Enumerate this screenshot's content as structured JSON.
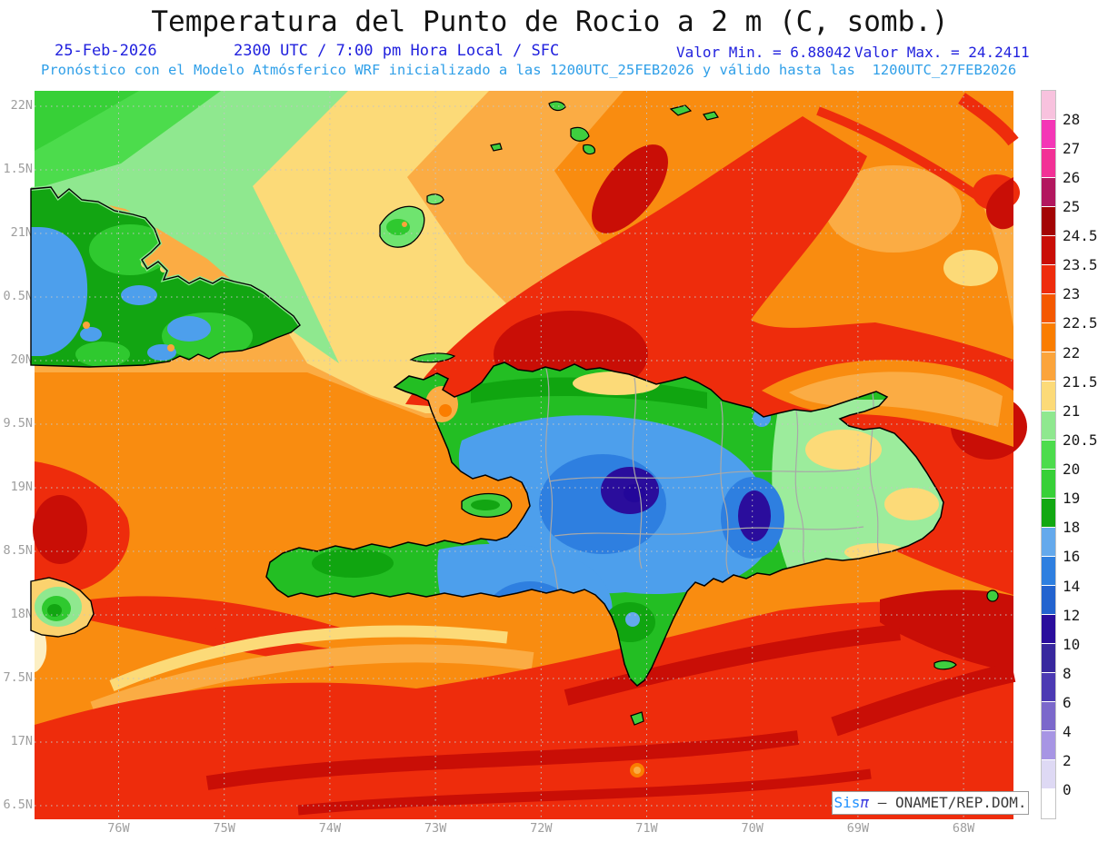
{
  "header": {
    "title": "Temperatura del Punto de Rocio a 2 m (C, somb.)",
    "date": "25-Feb-2026",
    "time_info": "2300 UTC / 7:00 pm Hora Local / SFC",
    "min_label": "Valor Min. = 6.88042",
    "max_label": "Valor Max. = 24.2411",
    "model_line": "Pronóstico con el Modelo Atmósferico WRF inicializado a las 1200UTC_25FEB2026 y válido hasta las  1200UTC_27FEB2026"
  },
  "colors": {
    "title_black": "#141414",
    "header_blue": "#2121de",
    "model_blue": "#2f9fe8",
    "axis_gray": "#9e9e9e"
  },
  "axes": {
    "y_labels": [
      "22N",
      "1.5N",
      "21N",
      "0.5N",
      "20N",
      "9.5N",
      "19N",
      "8.5N",
      "18N",
      "7.5N",
      "17N",
      "6.5N"
    ],
    "x_labels": [
      "76W",
      "75W",
      "74W",
      "73W",
      "72W",
      "71W",
      "70W",
      "69W",
      "68W"
    ]
  },
  "colorbar": {
    "unit": "C",
    "labels": [
      "28",
      "27",
      "26",
      "25",
      "24.5",
      "23.5",
      "23",
      "22.5",
      "22",
      "21.5",
      "21",
      "20.5",
      "20",
      "19",
      "18",
      "16",
      "14",
      "12",
      "10",
      "8",
      "6",
      "4",
      "2",
      "0"
    ],
    "cell_colors": [
      "#F8C2DE",
      "#F436B6",
      "#F23096",
      "#B2175E",
      "#A30404",
      "#C90E06",
      "#EE2C0C",
      "#F45800",
      "#FA7D00",
      "#FBA43B",
      "#FCDA78",
      "#8FE88F",
      "#4CDC4C",
      "#37D037",
      "#12A812",
      "#64A9EC",
      "#2E7FE0",
      "#2363CF",
      "#2A0D9C",
      "#38289E",
      "#4C3AB3",
      "#7B68CB",
      "#A795E4",
      "#DED9F4",
      "#FFFFFF"
    ]
  },
  "watermark": {
    "brand": "Sis",
    "pi": "π",
    "rest": " – ONAMET/REP.DOM."
  }
}
